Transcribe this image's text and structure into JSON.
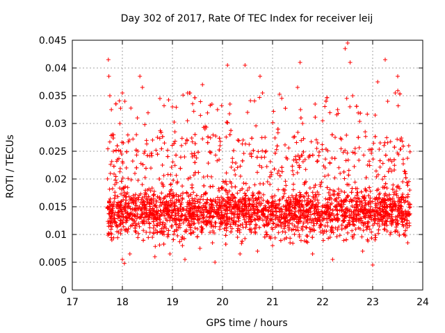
{
  "chart_data": {
    "type": "scatter",
    "title": "Day 302 of 2017, Rate Of TEC Index for receiver leij",
    "xlabel": "GPS time / hours",
    "ylabel": "ROTI / TECUs",
    "xlim": [
      17,
      24
    ],
    "ylim": [
      0,
      0.045
    ],
    "x_ticks": [
      "17",
      "18",
      "19",
      "20",
      "21",
      "22",
      "23",
      "24"
    ],
    "y_ticks": [
      "0",
      "0.005",
      "0.01",
      "0.015",
      "0.02",
      "0.025",
      "0.03",
      "0.035",
      "0.04",
      "0.045"
    ],
    "grid": true,
    "marker": "+",
    "series_color": "#ff0000",
    "series": [
      {
        "x_range": [
          17.7,
          23.75
        ],
        "points": [
          [
            17.72,
            0.0415
          ],
          [
            17.73,
            0.0385
          ],
          [
            17.75,
            0.035
          ],
          [
            17.78,
            0.0325
          ],
          [
            17.8,
            0.028
          ],
          [
            17.82,
            0.025
          ],
          [
            17.76,
            0.021
          ],
          [
            17.74,
            0.016
          ],
          [
            17.77,
            0.012
          ],
          [
            17.79,
            0.009
          ],
          [
            17.81,
            0.014
          ],
          [
            17.85,
            0.019
          ],
          [
            17.9,
            0.0235
          ],
          [
            17.95,
            0.03
          ],
          [
            18.0,
            0.0355
          ],
          [
            18.05,
            0.034
          ],
          [
            18.02,
            0.0265
          ],
          [
            18.08,
            0.022
          ],
          [
            18.1,
            0.0175
          ],
          [
            18.12,
            0.011
          ],
          [
            18.0,
            0.0055
          ],
          [
            18.04,
            0.0048
          ],
          [
            18.15,
            0.0065
          ],
          [
            18.2,
            0.0135
          ],
          [
            18.25,
            0.021
          ],
          [
            18.3,
            0.031
          ],
          [
            18.35,
            0.0385
          ],
          [
            18.4,
            0.0365
          ],
          [
            18.45,
            0.025
          ],
          [
            18.5,
            0.018
          ],
          [
            18.55,
            0.0135
          ],
          [
            18.6,
            0.0095
          ],
          [
            18.65,
            0.006
          ],
          [
            18.7,
            0.0275
          ],
          [
            18.75,
            0.0345
          ],
          [
            18.8,
            0.0225
          ],
          [
            18.85,
            0.015
          ],
          [
            18.9,
            0.01
          ],
          [
            18.95,
            0.0065
          ],
          [
            19.0,
            0.033
          ],
          [
            19.05,
            0.0285
          ],
          [
            19.1,
            0.0195
          ],
          [
            19.15,
            0.0125
          ],
          [
            19.2,
            0.008
          ],
          [
            19.25,
            0.0055
          ],
          [
            19.3,
            0.0305
          ],
          [
            19.35,
            0.0355
          ],
          [
            19.4,
            0.024
          ],
          [
            19.45,
            0.016
          ],
          [
            19.5,
            0.011
          ],
          [
            19.55,
            0.0075
          ],
          [
            19.6,
            0.037
          ],
          [
            19.65,
            0.029
          ],
          [
            19.7,
            0.0205
          ],
          [
            19.75,
            0.014
          ],
          [
            19.8,
            0.0085
          ],
          [
            19.85,
            0.005
          ],
          [
            19.9,
            0.0325
          ],
          [
            19.95,
            0.026
          ],
          [
            20.0,
            0.0185
          ],
          [
            20.05,
            0.012
          ],
          [
            20.1,
            0.0405
          ],
          [
            20.15,
            0.0335
          ],
          [
            20.2,
            0.023
          ],
          [
            20.25,
            0.0155
          ],
          [
            20.3,
            0.0095
          ],
          [
            20.35,
            0.0065
          ],
          [
            20.45,
            0.0405
          ],
          [
            20.5,
            0.032
          ],
          [
            20.55,
            0.0245
          ],
          [
            20.6,
            0.017
          ],
          [
            20.65,
            0.0105
          ],
          [
            20.7,
            0.007
          ],
          [
            20.75,
            0.0385
          ],
          [
            20.8,
            0.0355
          ],
          [
            20.85,
            0.0275
          ],
          [
            20.9,
            0.0195
          ],
          [
            20.95,
            0.0125
          ],
          [
            21.0,
            0.008
          ],
          [
            21.05,
            0.016
          ],
          [
            21.1,
            0.021
          ],
          [
            21.15,
            0.0145
          ],
          [
            21.2,
            0.0105
          ],
          [
            21.25,
            0.018
          ],
          [
            21.3,
            0.0125
          ],
          [
            21.35,
            0.0085
          ],
          [
            21.4,
            0.0215
          ],
          [
            21.45,
            0.0165
          ],
          [
            21.5,
            0.0365
          ],
          [
            21.55,
            0.041
          ],
          [
            21.6,
            0.03
          ],
          [
            21.65,
            0.0235
          ],
          [
            21.7,
            0.0155
          ],
          [
            21.75,
            0.0105
          ],
          [
            21.8,
            0.0065
          ],
          [
            21.85,
            0.0335
          ],
          [
            21.9,
            0.0265
          ],
          [
            21.95,
            0.019
          ],
          [
            22.0,
            0.0305
          ],
          [
            22.05,
            0.022
          ],
          [
            22.1,
            0.0145
          ],
          [
            22.15,
            0.0095
          ],
          [
            22.2,
            0.0055
          ],
          [
            22.25,
            0.0275
          ],
          [
            22.3,
            0.0325
          ],
          [
            22.35,
            0.021
          ],
          [
            22.4,
            0.0135
          ],
          [
            22.45,
            0.0435
          ],
          [
            22.5,
            0.0445
          ],
          [
            22.55,
            0.041
          ],
          [
            22.6,
            0.035
          ],
          [
            22.65,
            0.0255
          ],
          [
            22.7,
            0.0175
          ],
          [
            22.75,
            0.011
          ],
          [
            22.8,
            0.007
          ],
          [
            22.85,
            0.0285
          ],
          [
            22.9,
            0.0225
          ],
          [
            22.95,
            0.0145
          ],
          [
            23.0,
            0.0045
          ],
          [
            23.05,
            0.0315
          ],
          [
            23.1,
            0.0375
          ],
          [
            23.15,
            0.0265
          ],
          [
            23.2,
            0.0185
          ],
          [
            23.25,
            0.0415
          ],
          [
            23.3,
            0.034
          ],
          [
            23.35,
            0.0235
          ],
          [
            23.4,
            0.016
          ],
          [
            23.45,
            0.0355
          ],
          [
            23.5,
            0.0385
          ],
          [
            23.55,
            0.027
          ],
          [
            23.6,
            0.0195
          ],
          [
            23.65,
            0.013
          ],
          [
            23.7,
            0.0085
          ],
          [
            23.72,
            0.026
          ],
          [
            23.74,
            0.018
          ]
        ]
      }
    ]
  }
}
